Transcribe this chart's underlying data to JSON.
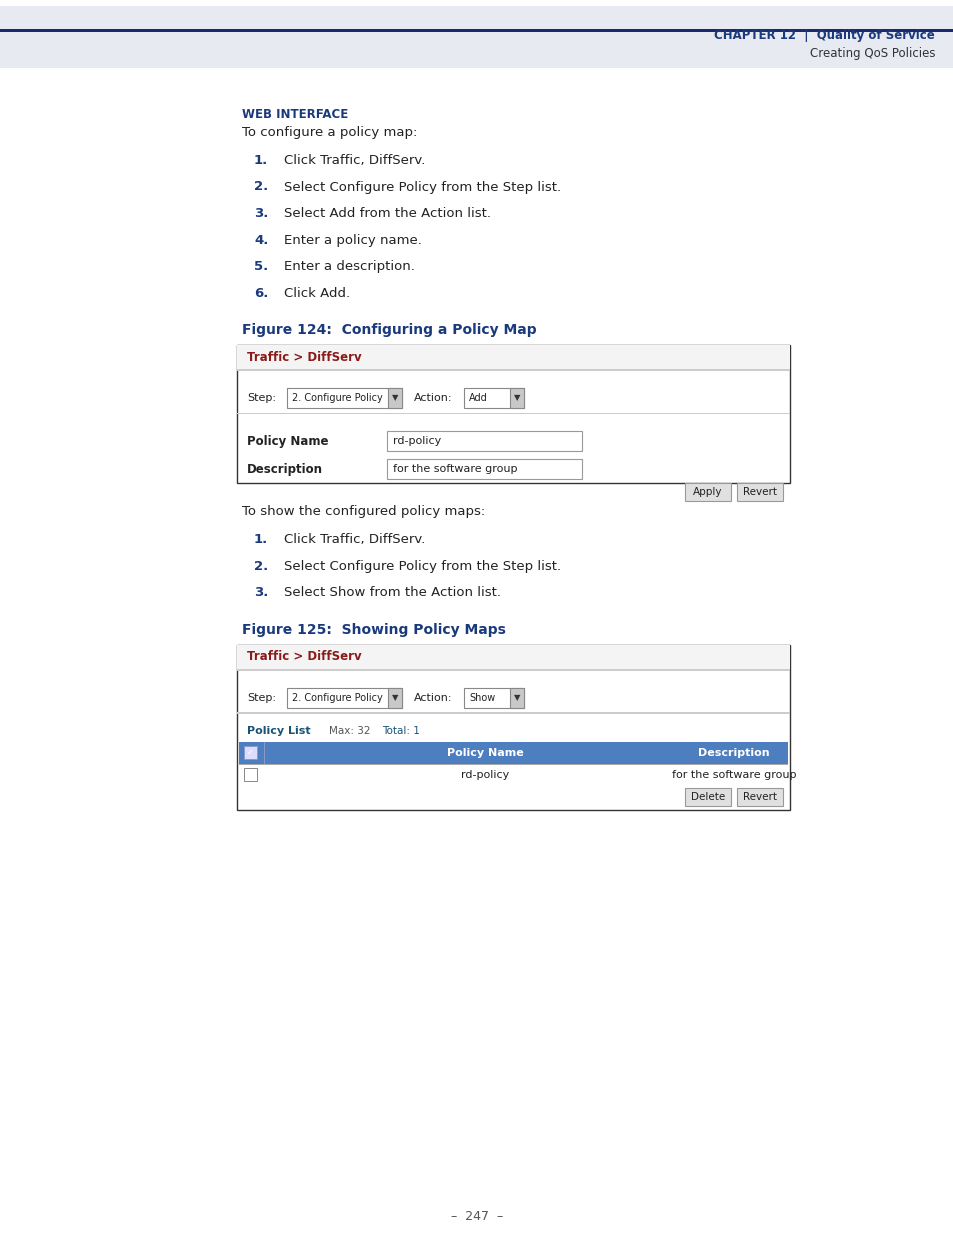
{
  "page_bg": "#ffffff",
  "header_bg": "#e8eaf2",
  "header_line_color": "#1a2a6c",
  "header_chapter_color": "#1a3a7c",
  "header_text_color": "#333333",
  "web_interface_label": "WEB INTERFACE",
  "intro_text": "To configure a policy map:",
  "steps_section1": [
    [
      "1.",
      "Click Traffic, DiffServ."
    ],
    [
      "2.",
      "Select Configure Policy from the Step list."
    ],
    [
      "3.",
      "Select Add from the Action list."
    ],
    [
      "4.",
      "Enter a policy name."
    ],
    [
      "5.",
      "Enter a description."
    ],
    [
      "6.",
      "Click Add."
    ]
  ],
  "fig124_title": "Figure 124:  Configuring a Policy Map",
  "fig125_title": "Figure 125:  Showing Policy Maps",
  "intro_text2": "To show the configured policy maps:",
  "steps_section2": [
    [
      "1.",
      "Click Traffic, DiffServ."
    ],
    [
      "2.",
      "Select Configure Policy from the Step list."
    ],
    [
      "3.",
      "Select Show from the Action list."
    ]
  ],
  "footer_text": "–  247  –",
  "traffic_diffserv_color": "#8b1a1a",
  "blue_header_bg": "#4d7ebf",
  "policy_list_color": "#1a5276"
}
